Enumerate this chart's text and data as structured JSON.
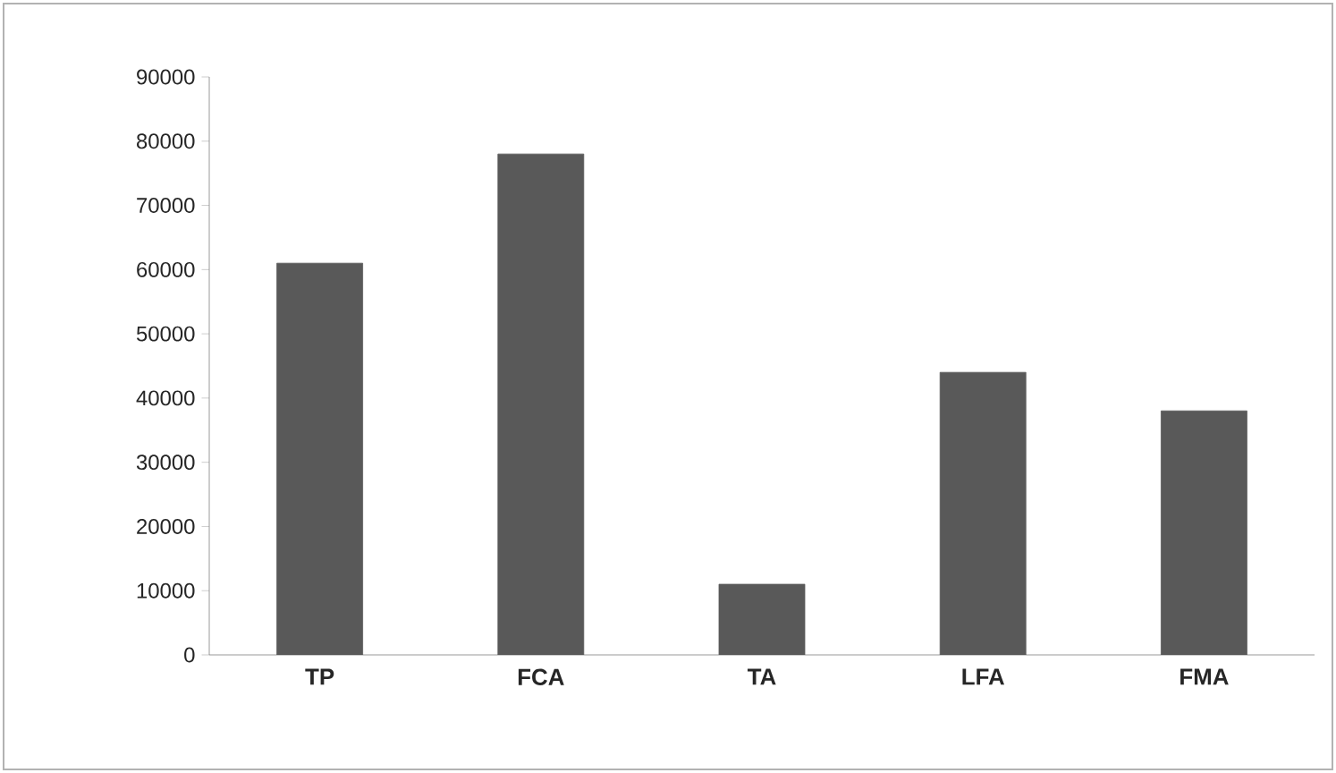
{
  "chart_data": {
    "type": "bar",
    "categories": [
      "TP",
      "FCA",
      "TA",
      "LFA",
      "FMA"
    ],
    "values": [
      61000,
      78000,
      11000,
      44000,
      38000
    ],
    "color": "#595959",
    "ylim": [
      0,
      90000
    ],
    "yticks": [
      0,
      10000,
      20000,
      30000,
      40000,
      50000,
      60000,
      70000,
      80000,
      90000
    ],
    "grid": false
  }
}
